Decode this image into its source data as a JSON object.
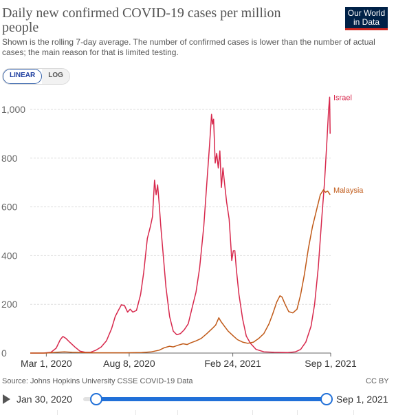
{
  "header": {
    "title": "Daily new confirmed COVID-19 cases per million people",
    "subtitle": "Shown is the rolling 7-day average. The number of confirmed cases is lower than the number of actual cases; the main reason for that is limited testing.",
    "logo_line1": "Our World",
    "logo_line2": "in Data"
  },
  "controls": {
    "linear_label": "LINEAR",
    "log_label": "LOG",
    "active": "LINEAR"
  },
  "footer": {
    "source": "Source: Johns Hopkins University CSSE COVID-19 Data",
    "license": "CC BY"
  },
  "timeline": {
    "start_label": "Jan 30, 2020",
    "end_label": "Sep 1, 2021"
  },
  "colors": {
    "israel": "#d7284c",
    "malaysia": "#c05917",
    "grid": "#dddddd",
    "axis": "#666666"
  },
  "chart_data": {
    "type": "line",
    "title": "Daily new confirmed COVID-19 cases per million people",
    "ylim": [
      0,
      1000
    ],
    "y_ticks": [
      0,
      200,
      400,
      600,
      800,
      1000
    ],
    "y_tick_labels": [
      "0",
      "200",
      "400",
      "600",
      "800",
      "1,000"
    ],
    "x_tick_labels": [
      "Mar 1, 2020",
      "Aug 8, 2020",
      "Feb 24, 2021",
      "Sep 1, 2021"
    ],
    "x_ticks": [
      "2020-03-01",
      "2020-08-08",
      "2021-02-24",
      "2021-09-01"
    ],
    "xlim": [
      "2020-01-30",
      "2021-09-01"
    ],
    "grid": true,
    "series": [
      {
        "name": "Israel",
        "color": "#d7284c",
        "points": [
          [
            "2020-01-30",
            0
          ],
          [
            "2020-02-25",
            0
          ],
          [
            "2020-03-10",
            3
          ],
          [
            "2020-03-20",
            20
          ],
          [
            "2020-03-28",
            55
          ],
          [
            "2020-04-02",
            68
          ],
          [
            "2020-04-08",
            60
          ],
          [
            "2020-04-15",
            45
          ],
          [
            "2020-04-25",
            25
          ],
          [
            "2020-05-05",
            8
          ],
          [
            "2020-05-15",
            3
          ],
          [
            "2020-05-25",
            3
          ],
          [
            "2020-06-05",
            12
          ],
          [
            "2020-06-15",
            25
          ],
          [
            "2020-06-25",
            50
          ],
          [
            "2020-07-05",
            100
          ],
          [
            "2020-07-12",
            150
          ],
          [
            "2020-07-18",
            175
          ],
          [
            "2020-07-24",
            198
          ],
          [
            "2020-07-30",
            195
          ],
          [
            "2020-08-05",
            168
          ],
          [
            "2020-08-10",
            180
          ],
          [
            "2020-08-15",
            168
          ],
          [
            "2020-08-22",
            175
          ],
          [
            "2020-08-30",
            240
          ],
          [
            "2020-09-05",
            330
          ],
          [
            "2020-09-12",
            470
          ],
          [
            "2020-09-18",
            520
          ],
          [
            "2020-09-22",
            560
          ],
          [
            "2020-09-26",
            710
          ],
          [
            "2020-09-29",
            650
          ],
          [
            "2020-10-02",
            690
          ],
          [
            "2020-10-05",
            610
          ],
          [
            "2020-10-08",
            520
          ],
          [
            "2020-10-12",
            420
          ],
          [
            "2020-10-18",
            270
          ],
          [
            "2020-10-25",
            150
          ],
          [
            "2020-11-01",
            90
          ],
          [
            "2020-11-08",
            75
          ],
          [
            "2020-11-15",
            80
          ],
          [
            "2020-11-22",
            95
          ],
          [
            "2020-11-30",
            120
          ],
          [
            "2020-12-08",
            190
          ],
          [
            "2020-12-15",
            250
          ],
          [
            "2020-12-22",
            350
          ],
          [
            "2020-12-30",
            520
          ],
          [
            "2021-01-05",
            700
          ],
          [
            "2021-01-10",
            850
          ],
          [
            "2021-01-14",
            980
          ],
          [
            "2021-01-16",
            940
          ],
          [
            "2021-01-18",
            960
          ],
          [
            "2021-01-21",
            780
          ],
          [
            "2021-01-24",
            820
          ],
          [
            "2021-01-27",
            760
          ],
          [
            "2021-01-30",
            830
          ],
          [
            "2021-02-02",
            680
          ],
          [
            "2021-02-05",
            760
          ],
          [
            "2021-02-08",
            700
          ],
          [
            "2021-02-12",
            620
          ],
          [
            "2021-02-17",
            550
          ],
          [
            "2021-02-20",
            450
          ],
          [
            "2021-02-22",
            380
          ],
          [
            "2021-02-25",
            420
          ],
          [
            "2021-02-28",
            420
          ],
          [
            "2021-03-03",
            340
          ],
          [
            "2021-03-08",
            240
          ],
          [
            "2021-03-15",
            140
          ],
          [
            "2021-03-22",
            70
          ],
          [
            "2021-03-30",
            40
          ],
          [
            "2021-04-10",
            15
          ],
          [
            "2021-04-25",
            5
          ],
          [
            "2021-05-15",
            3
          ],
          [
            "2021-06-10",
            2
          ],
          [
            "2021-06-25",
            5
          ],
          [
            "2021-07-05",
            15
          ],
          [
            "2021-07-15",
            45
          ],
          [
            "2021-07-25",
            110
          ],
          [
            "2021-08-01",
            200
          ],
          [
            "2021-08-08",
            350
          ],
          [
            "2021-08-15",
            560
          ],
          [
            "2021-08-20",
            700
          ],
          [
            "2021-08-25",
            880
          ],
          [
            "2021-08-28",
            1000
          ],
          [
            "2021-08-30",
            1050
          ],
          [
            "2021-08-31",
            900
          ]
        ]
      },
      {
        "name": "Malaysia",
        "color": "#c05917",
        "points": [
          [
            "2020-01-30",
            0
          ],
          [
            "2020-03-01",
            0
          ],
          [
            "2020-03-20",
            3
          ],
          [
            "2020-04-05",
            5
          ],
          [
            "2020-04-20",
            3
          ],
          [
            "2020-05-10",
            2
          ],
          [
            "2020-06-01",
            1
          ],
          [
            "2020-07-01",
            1
          ],
          [
            "2020-08-01",
            1
          ],
          [
            "2020-09-01",
            2
          ],
          [
            "2020-09-20",
            5
          ],
          [
            "2020-10-05",
            12
          ],
          [
            "2020-10-15",
            22
          ],
          [
            "2020-10-25",
            28
          ],
          [
            "2020-11-01",
            25
          ],
          [
            "2020-11-10",
            32
          ],
          [
            "2020-11-20",
            38
          ],
          [
            "2020-11-28",
            35
          ],
          [
            "2020-12-05",
            42
          ],
          [
            "2020-12-15",
            50
          ],
          [
            "2020-12-25",
            60
          ],
          [
            "2021-01-05",
            80
          ],
          [
            "2021-01-15",
            100
          ],
          [
            "2021-01-22",
            115
          ],
          [
            "2021-01-28",
            145
          ],
          [
            "2021-02-01",
            130
          ],
          [
            "2021-02-08",
            110
          ],
          [
            "2021-02-15",
            90
          ],
          [
            "2021-02-25",
            70
          ],
          [
            "2021-03-05",
            55
          ],
          [
            "2021-03-15",
            45
          ],
          [
            "2021-03-25",
            40
          ],
          [
            "2021-04-05",
            45
          ],
          [
            "2021-04-15",
            60
          ],
          [
            "2021-04-25",
            80
          ],
          [
            "2021-05-05",
            120
          ],
          [
            "2021-05-12",
            160
          ],
          [
            "2021-05-20",
            210
          ],
          [
            "2021-05-26",
            235
          ],
          [
            "2021-05-30",
            230
          ],
          [
            "2021-06-05",
            200
          ],
          [
            "2021-06-12",
            170
          ],
          [
            "2021-06-20",
            165
          ],
          [
            "2021-06-28",
            180
          ],
          [
            "2021-07-05",
            240
          ],
          [
            "2021-07-12",
            320
          ],
          [
            "2021-07-20",
            430
          ],
          [
            "2021-07-28",
            520
          ],
          [
            "2021-08-05",
            590
          ],
          [
            "2021-08-12",
            650
          ],
          [
            "2021-08-18",
            670
          ],
          [
            "2021-08-22",
            660
          ],
          [
            "2021-08-26",
            665
          ],
          [
            "2021-08-31",
            650
          ]
        ]
      }
    ]
  }
}
